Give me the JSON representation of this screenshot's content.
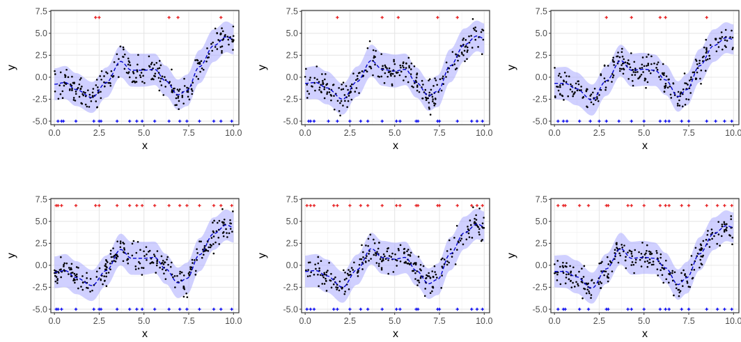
{
  "chart_data": [
    {
      "type": "scatter",
      "xlabel": "x",
      "ylabel": "y",
      "xlim": [
        -0.2,
        10.3
      ],
      "ylim": [
        -5.4,
        7.6
      ],
      "x_ticks": [
        "0.0",
        "2.5",
        "5.0",
        "7.5",
        "10.0"
      ],
      "y_ticks": [
        "-5.0",
        "-2.5",
        "0.0",
        "2.5",
        "5.0",
        "7.5"
      ],
      "grid": true,
      "series": [
        {
          "role": "observations",
          "color": "#000000",
          "mean_knots_x": [
            0,
            0.6,
            1.2,
            2.1,
            2.9,
            3.7,
            4.3,
            5.0,
            5.6,
            6.2,
            6.9,
            7.4,
            8.1,
            8.9,
            9.6,
            10
          ]
        },
        {
          "role": "mean",
          "style": "dashed",
          "color": "#0000cc",
          "x": [
            0,
            0.6,
            1.2,
            2.1,
            2.9,
            3.7,
            4.3,
            5.0,
            5.6,
            6.2,
            6.9,
            7.4,
            8.1,
            8.9,
            9.6,
            10
          ],
          "y": [
            -0.8,
            -0.6,
            -1.4,
            -2.3,
            -0.6,
            1.8,
            0.8,
            0.8,
            0.9,
            -0.4,
            -2.0,
            -1.5,
            1.2,
            3.6,
            4.6,
            4.3
          ]
        },
        {
          "role": "band",
          "color": "#aaaaff",
          "halfwidth": 1.8
        },
        {
          "role": "upper_marks",
          "color": "#e6191a",
          "y": 6.8,
          "x": [
            2.3,
            2.5,
            6.4,
            6.9,
            9.3
          ]
        },
        {
          "role": "lower_marks",
          "color": "#0000ee",
          "y": -5.0,
          "x": [
            0.2,
            0.4,
            0.5,
            1.2,
            2.2,
            2.5,
            2.6,
            3.5,
            4.2,
            4.6,
            4.9,
            5.6,
            6.4,
            7.0,
            7.4,
            8.1,
            8.9,
            9.3,
            9.9
          ]
        }
      ]
    },
    {
      "type": "scatter",
      "xlabel": "x",
      "ylabel": "y",
      "xlim": [
        -0.2,
        10.3
      ],
      "ylim": [
        -5.4,
        7.6
      ],
      "x_ticks": [
        "0.0",
        "2.5",
        "5.0",
        "7.5",
        "10.0"
      ],
      "y_ticks": [
        "-5.0",
        "-2.5",
        "0.0",
        "2.5",
        "5.0",
        "7.5"
      ],
      "grid": true,
      "series": [
        {
          "role": "observations",
          "color": "#000000"
        },
        {
          "role": "mean",
          "style": "dashed",
          "color": "#0000cc",
          "x": [
            0,
            0.6,
            1.2,
            2.1,
            2.9,
            3.7,
            4.3,
            5.0,
            5.6,
            6.2,
            6.9,
            7.4,
            8.1,
            8.9,
            9.6,
            10
          ],
          "y": [
            -0.7,
            -0.6,
            -1.2,
            -2.5,
            -0.5,
            1.9,
            0.9,
            0.7,
            0.9,
            -0.6,
            -2.1,
            -1.6,
            1.3,
            3.7,
            4.7,
            4.4
          ]
        },
        {
          "role": "band",
          "color": "#aaaaff",
          "halfwidth": 1.8
        },
        {
          "role": "upper_marks",
          "color": "#e6191a",
          "y": 6.8,
          "x": [
            1.8,
            4.3,
            5.2,
            7.4,
            8.5
          ]
        },
        {
          "role": "lower_marks",
          "color": "#0000ee",
          "y": -5.0,
          "x": [
            0.2,
            0.3,
            0.5,
            1.3,
            1.8,
            2.5,
            3.1,
            3.5,
            4.3,
            5.1,
            5.3,
            6.2,
            6.3,
            7.4,
            7.5,
            8.5,
            9.3,
            9.6,
            9.9
          ]
        }
      ]
    },
    {
      "type": "scatter",
      "xlabel": "x",
      "ylabel": "y",
      "xlim": [
        -0.2,
        10.3
      ],
      "ylim": [
        -5.4,
        7.6
      ],
      "x_ticks": [
        "0.0",
        "2.5",
        "5.0",
        "7.5",
        "10.0"
      ],
      "y_ticks": [
        "-5.0",
        "-2.5",
        "0.0",
        "2.5",
        "5.0",
        "7.5"
      ],
      "grid": true,
      "series": [
        {
          "role": "observations",
          "color": "#000000"
        },
        {
          "role": "mean",
          "style": "dashed",
          "color": "#0000cc",
          "x": [
            0,
            0.6,
            1.2,
            2.1,
            2.9,
            3.7,
            4.3,
            5.0,
            5.6,
            6.2,
            6.9,
            7.4,
            8.1,
            8.9,
            9.6,
            10
          ],
          "y": [
            -0.7,
            -0.7,
            -1.3,
            -2.6,
            -0.4,
            1.9,
            0.8,
            0.9,
            0.8,
            -0.3,
            -2.2,
            -1.4,
            1.3,
            3.6,
            4.5,
            4.3
          ]
        },
        {
          "role": "band",
          "color": "#aaaaff",
          "halfwidth": 1.8
        },
        {
          "role": "upper_marks",
          "color": "#e6191a",
          "y": 6.8,
          "x": [
            2.9,
            4.3,
            5.9,
            6.2,
            8.5
          ]
        },
        {
          "role": "lower_marks",
          "color": "#0000ee",
          "y": -5.0,
          "x": [
            0.2,
            0.5,
            0.7,
            1.4,
            2.0,
            2.5,
            2.9,
            3.6,
            4.3,
            5.0,
            5.9,
            6.2,
            6.4,
            7.1,
            7.5,
            8.5,
            9.0,
            9.5,
            9.9
          ]
        }
      ]
    },
    {
      "type": "scatter",
      "xlabel": "x",
      "ylabel": "y",
      "xlim": [
        -0.2,
        10.3
      ],
      "ylim": [
        -5.4,
        7.6
      ],
      "x_ticks": [
        "0.0",
        "2.5",
        "5.0",
        "7.5",
        "10.0"
      ],
      "y_ticks": [
        "-5.0",
        "-2.5",
        "0.0",
        "2.5",
        "5.0",
        "7.5"
      ],
      "grid": true,
      "series": [
        {
          "role": "observations",
          "color": "#000000"
        },
        {
          "role": "mean",
          "style": "dashed",
          "color": "#0000cc",
          "x": [
            0,
            0.6,
            1.2,
            2.1,
            2.9,
            3.7,
            4.3,
            5.0,
            5.6,
            6.2,
            6.9,
            7.4,
            8.1,
            8.9,
            9.6,
            10
          ],
          "y": [
            -0.8,
            -0.6,
            -1.4,
            -2.3,
            -0.6,
            1.8,
            0.8,
            0.8,
            0.9,
            -0.4,
            -2.0,
            -1.5,
            1.2,
            3.6,
            4.6,
            4.3
          ]
        },
        {
          "role": "band",
          "color": "#aaaaff",
          "halfwidth": 1.8
        },
        {
          "role": "upper_marks",
          "color": "#e6191a",
          "y": 6.8,
          "x": [
            0.1,
            0.2,
            0.4,
            1.2,
            2.3,
            2.5,
            3.5,
            4.2,
            4.6,
            4.9,
            5.6,
            6.4,
            7.0,
            7.4,
            8.1,
            8.9,
            9.3,
            9.9
          ]
        },
        {
          "role": "lower_marks",
          "color": "#0000ee",
          "y": -5.0,
          "x": [
            0.1,
            0.2,
            0.4,
            1.2,
            2.2,
            2.5,
            2.6,
            3.5,
            4.2,
            4.6,
            4.9,
            5.6,
            6.4,
            7.0,
            7.4,
            8.1,
            8.9,
            9.3,
            9.9
          ]
        }
      ]
    },
    {
      "type": "scatter",
      "xlabel": "x",
      "ylabel": "y",
      "xlim": [
        -0.2,
        10.3
      ],
      "ylim": [
        -5.4,
        7.6
      ],
      "x_ticks": [
        "0.0",
        "2.5",
        "5.0",
        "7.5",
        "10.0"
      ],
      "y_ticks": [
        "-5.0",
        "-2.5",
        "0.0",
        "2.5",
        "5.0",
        "7.5"
      ],
      "grid": true,
      "series": [
        {
          "role": "observations",
          "color": "#000000"
        },
        {
          "role": "mean",
          "style": "dashed",
          "color": "#0000cc",
          "x": [
            0,
            0.6,
            1.2,
            2.1,
            2.9,
            3.7,
            4.3,
            5.0,
            5.6,
            6.2,
            6.9,
            7.4,
            8.1,
            8.9,
            9.6,
            10
          ],
          "y": [
            -0.7,
            -0.6,
            -1.2,
            -2.5,
            -0.5,
            1.9,
            0.9,
            0.7,
            0.9,
            -0.6,
            -2.1,
            -1.6,
            1.3,
            3.7,
            4.7,
            4.4
          ]
        },
        {
          "role": "band",
          "color": "#aaaaff",
          "halfwidth": 1.8
        },
        {
          "role": "upper_marks",
          "color": "#e6191a",
          "y": 6.8,
          "x": [
            0.1,
            0.3,
            0.5,
            1.6,
            1.8,
            2.5,
            3.1,
            3.5,
            4.3,
            5.1,
            5.3,
            6.2,
            6.3,
            7.4,
            7.5,
            8.5,
            9.3,
            9.6,
            9.9
          ]
        },
        {
          "role": "lower_marks",
          "color": "#0000ee",
          "y": -5.0,
          "x": [
            0.1,
            0.3,
            0.5,
            1.6,
            1.8,
            2.5,
            3.1,
            3.5,
            4.3,
            5.1,
            5.3,
            6.2,
            6.3,
            7.4,
            7.5,
            8.5,
            9.3,
            9.6,
            9.9
          ]
        }
      ]
    },
    {
      "type": "scatter",
      "xlabel": "x",
      "ylabel": "y",
      "xlim": [
        -0.2,
        10.3
      ],
      "ylim": [
        -5.4,
        7.6
      ],
      "x_ticks": [
        "0.0",
        "2.5",
        "5.0",
        "7.5",
        "10.0"
      ],
      "y_ticks": [
        "-5.0",
        "-2.5",
        "0.0",
        "2.5",
        "5.0",
        "7.5"
      ],
      "grid": true,
      "series": [
        {
          "role": "observations",
          "color": "#000000"
        },
        {
          "role": "mean",
          "style": "dashed",
          "color": "#0000cc",
          "x": [
            0,
            0.6,
            1.2,
            2.1,
            2.9,
            3.7,
            4.3,
            5.0,
            5.6,
            6.2,
            6.9,
            7.4,
            8.1,
            8.9,
            9.6,
            10
          ],
          "y": [
            -0.7,
            -0.7,
            -1.3,
            -2.6,
            -0.4,
            1.9,
            0.8,
            0.9,
            0.8,
            -0.3,
            -2.2,
            -1.4,
            1.3,
            3.6,
            4.5,
            4.3
          ]
        },
        {
          "role": "band",
          "color": "#aaaaff",
          "halfwidth": 1.8
        },
        {
          "role": "upper_marks",
          "color": "#e6191a",
          "y": 6.8,
          "x": [
            0.2,
            0.5,
            0.6,
            1.4,
            1.9,
            2.9,
            3.0,
            4.1,
            4.3,
            5.0,
            5.9,
            6.2,
            6.4,
            7.1,
            7.5,
            8.5,
            9.1,
            9.5,
            9.9
          ]
        },
        {
          "role": "lower_marks",
          "color": "#0000ee",
          "y": -5.0,
          "x": [
            0.2,
            0.5,
            0.6,
            1.4,
            1.9,
            2.9,
            3.0,
            4.1,
            4.3,
            5.0,
            5.9,
            6.2,
            6.4,
            7.1,
            7.5,
            8.5,
            9.1,
            9.5,
            9.9
          ]
        }
      ]
    }
  ]
}
